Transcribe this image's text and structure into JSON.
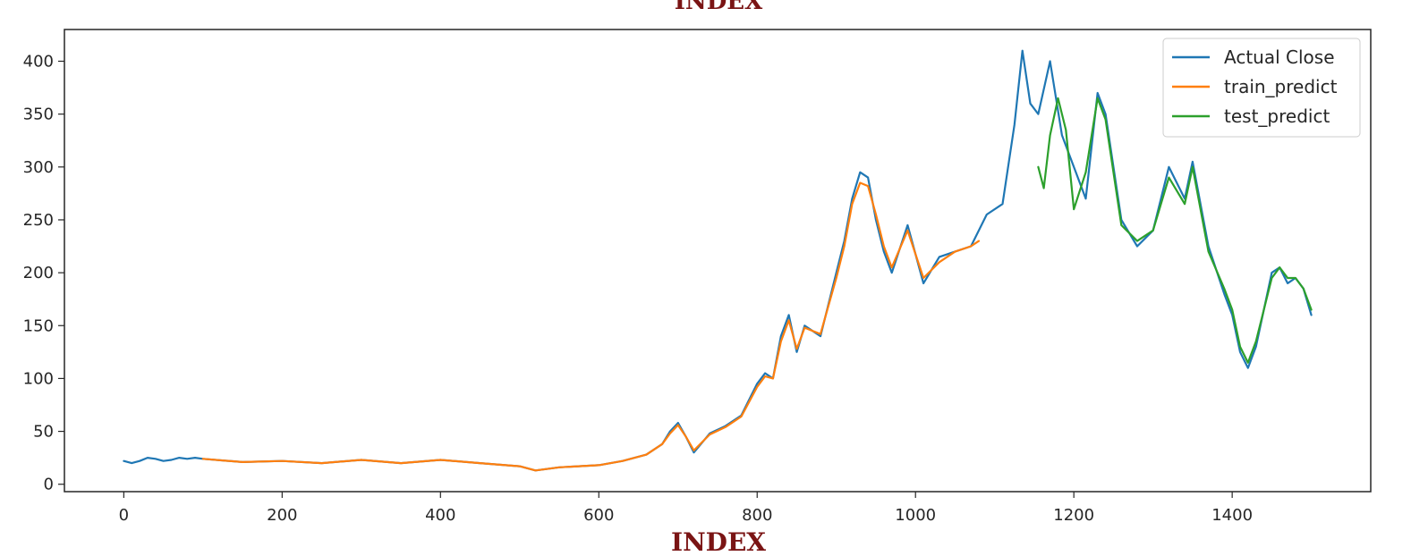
{
  "chart_data": {
    "type": "line",
    "title": "INDEX",
    "xlabel": "INDEX",
    "ylabel": "",
    "xlim": [
      -75,
      1575
    ],
    "ylim": [
      -7,
      430
    ],
    "xticks": [
      0,
      200,
      400,
      600,
      800,
      1000,
      1200,
      1400
    ],
    "yticks": [
      0,
      50,
      100,
      150,
      200,
      250,
      300,
      350,
      400
    ],
    "grid": false,
    "legend": {
      "placement": "top-right",
      "entries": [
        "Actual Close",
        "train_predict",
        "test_predict"
      ]
    },
    "series": [
      {
        "name": "Actual Close",
        "color": "#1f77b4",
        "points": [
          [
            0,
            22
          ],
          [
            10,
            20
          ],
          [
            20,
            22
          ],
          [
            30,
            25
          ],
          [
            40,
            24
          ],
          [
            50,
            22
          ],
          [
            60,
            23
          ],
          [
            70,
            25
          ],
          [
            80,
            24
          ],
          [
            90,
            25
          ],
          [
            100,
            24
          ],
          [
            150,
            21
          ],
          [
            200,
            22
          ],
          [
            250,
            20
          ],
          [
            300,
            23
          ],
          [
            350,
            20
          ],
          [
            400,
            23
          ],
          [
            450,
            20
          ],
          [
            500,
            17
          ],
          [
            520,
            13
          ],
          [
            550,
            16
          ],
          [
            600,
            18
          ],
          [
            630,
            22
          ],
          [
            660,
            28
          ],
          [
            680,
            38
          ],
          [
            690,
            50
          ],
          [
            700,
            58
          ],
          [
            710,
            45
          ],
          [
            720,
            30
          ],
          [
            740,
            48
          ],
          [
            760,
            55
          ],
          [
            780,
            65
          ],
          [
            800,
            95
          ],
          [
            810,
            105
          ],
          [
            820,
            100
          ],
          [
            830,
            140
          ],
          [
            840,
            160
          ],
          [
            850,
            125
          ],
          [
            860,
            150
          ],
          [
            880,
            140
          ],
          [
            900,
            200
          ],
          [
            910,
            230
          ],
          [
            920,
            270
          ],
          [
            930,
            295
          ],
          [
            940,
            290
          ],
          [
            950,
            250
          ],
          [
            960,
            220
          ],
          [
            970,
            200
          ],
          [
            990,
            245
          ],
          [
            1010,
            190
          ],
          [
            1030,
            215
          ],
          [
            1050,
            220
          ],
          [
            1070,
            225
          ],
          [
            1090,
            255
          ],
          [
            1110,
            265
          ],
          [
            1125,
            340
          ],
          [
            1135,
            410
          ],
          [
            1145,
            360
          ],
          [
            1155,
            350
          ],
          [
            1170,
            400
          ],
          [
            1185,
            330
          ],
          [
            1200,
            300
          ],
          [
            1215,
            270
          ],
          [
            1230,
            370
          ],
          [
            1240,
            350
          ],
          [
            1260,
            250
          ],
          [
            1280,
            225
          ],
          [
            1300,
            240
          ],
          [
            1320,
            300
          ],
          [
            1340,
            270
          ],
          [
            1350,
            305
          ],
          [
            1370,
            225
          ],
          [
            1390,
            180
          ],
          [
            1400,
            160
          ],
          [
            1410,
            125
          ],
          [
            1420,
            110
          ],
          [
            1430,
            130
          ],
          [
            1450,
            200
          ],
          [
            1460,
            205
          ],
          [
            1470,
            190
          ],
          [
            1480,
            195
          ],
          [
            1490,
            185
          ],
          [
            1500,
            160
          ]
        ]
      },
      {
        "name": "train_predict",
        "color": "#ff7f0e",
        "points": [
          [
            100,
            24
          ],
          [
            150,
            21
          ],
          [
            200,
            22
          ],
          [
            250,
            20
          ],
          [
            300,
            23
          ],
          [
            350,
            20
          ],
          [
            400,
            23
          ],
          [
            450,
            20
          ],
          [
            500,
            17
          ],
          [
            520,
            13
          ],
          [
            550,
            16
          ],
          [
            600,
            18
          ],
          [
            630,
            22
          ],
          [
            660,
            28
          ],
          [
            680,
            38
          ],
          [
            690,
            48
          ],
          [
            700,
            56
          ],
          [
            710,
            45
          ],
          [
            720,
            32
          ],
          [
            740,
            47
          ],
          [
            760,
            54
          ],
          [
            780,
            64
          ],
          [
            800,
            92
          ],
          [
            810,
            102
          ],
          [
            820,
            100
          ],
          [
            830,
            135
          ],
          [
            840,
            155
          ],
          [
            850,
            128
          ],
          [
            860,
            148
          ],
          [
            880,
            142
          ],
          [
            900,
            195
          ],
          [
            910,
            225
          ],
          [
            920,
            265
          ],
          [
            930,
            285
          ],
          [
            940,
            282
          ],
          [
            950,
            255
          ],
          [
            960,
            225
          ],
          [
            970,
            205
          ],
          [
            990,
            240
          ],
          [
            1010,
            195
          ],
          [
            1030,
            210
          ],
          [
            1050,
            220
          ],
          [
            1070,
            225
          ],
          [
            1080,
            230
          ]
        ]
      },
      {
        "name": "test_predict",
        "color": "#2ca02c",
        "points": [
          [
            1155,
            300
          ],
          [
            1162,
            280
          ],
          [
            1170,
            330
          ],
          [
            1180,
            365
          ],
          [
            1190,
            335
          ],
          [
            1200,
            260
          ],
          [
            1215,
            295
          ],
          [
            1230,
            365
          ],
          [
            1240,
            345
          ],
          [
            1260,
            245
          ],
          [
            1280,
            230
          ],
          [
            1300,
            240
          ],
          [
            1320,
            290
          ],
          [
            1340,
            265
          ],
          [
            1350,
            300
          ],
          [
            1370,
            220
          ],
          [
            1390,
            185
          ],
          [
            1400,
            165
          ],
          [
            1410,
            130
          ],
          [
            1420,
            115
          ],
          [
            1430,
            135
          ],
          [
            1450,
            195
          ],
          [
            1460,
            205
          ],
          [
            1470,
            195
          ],
          [
            1480,
            195
          ],
          [
            1490,
            185
          ],
          [
            1500,
            165
          ]
        ]
      }
    ]
  }
}
